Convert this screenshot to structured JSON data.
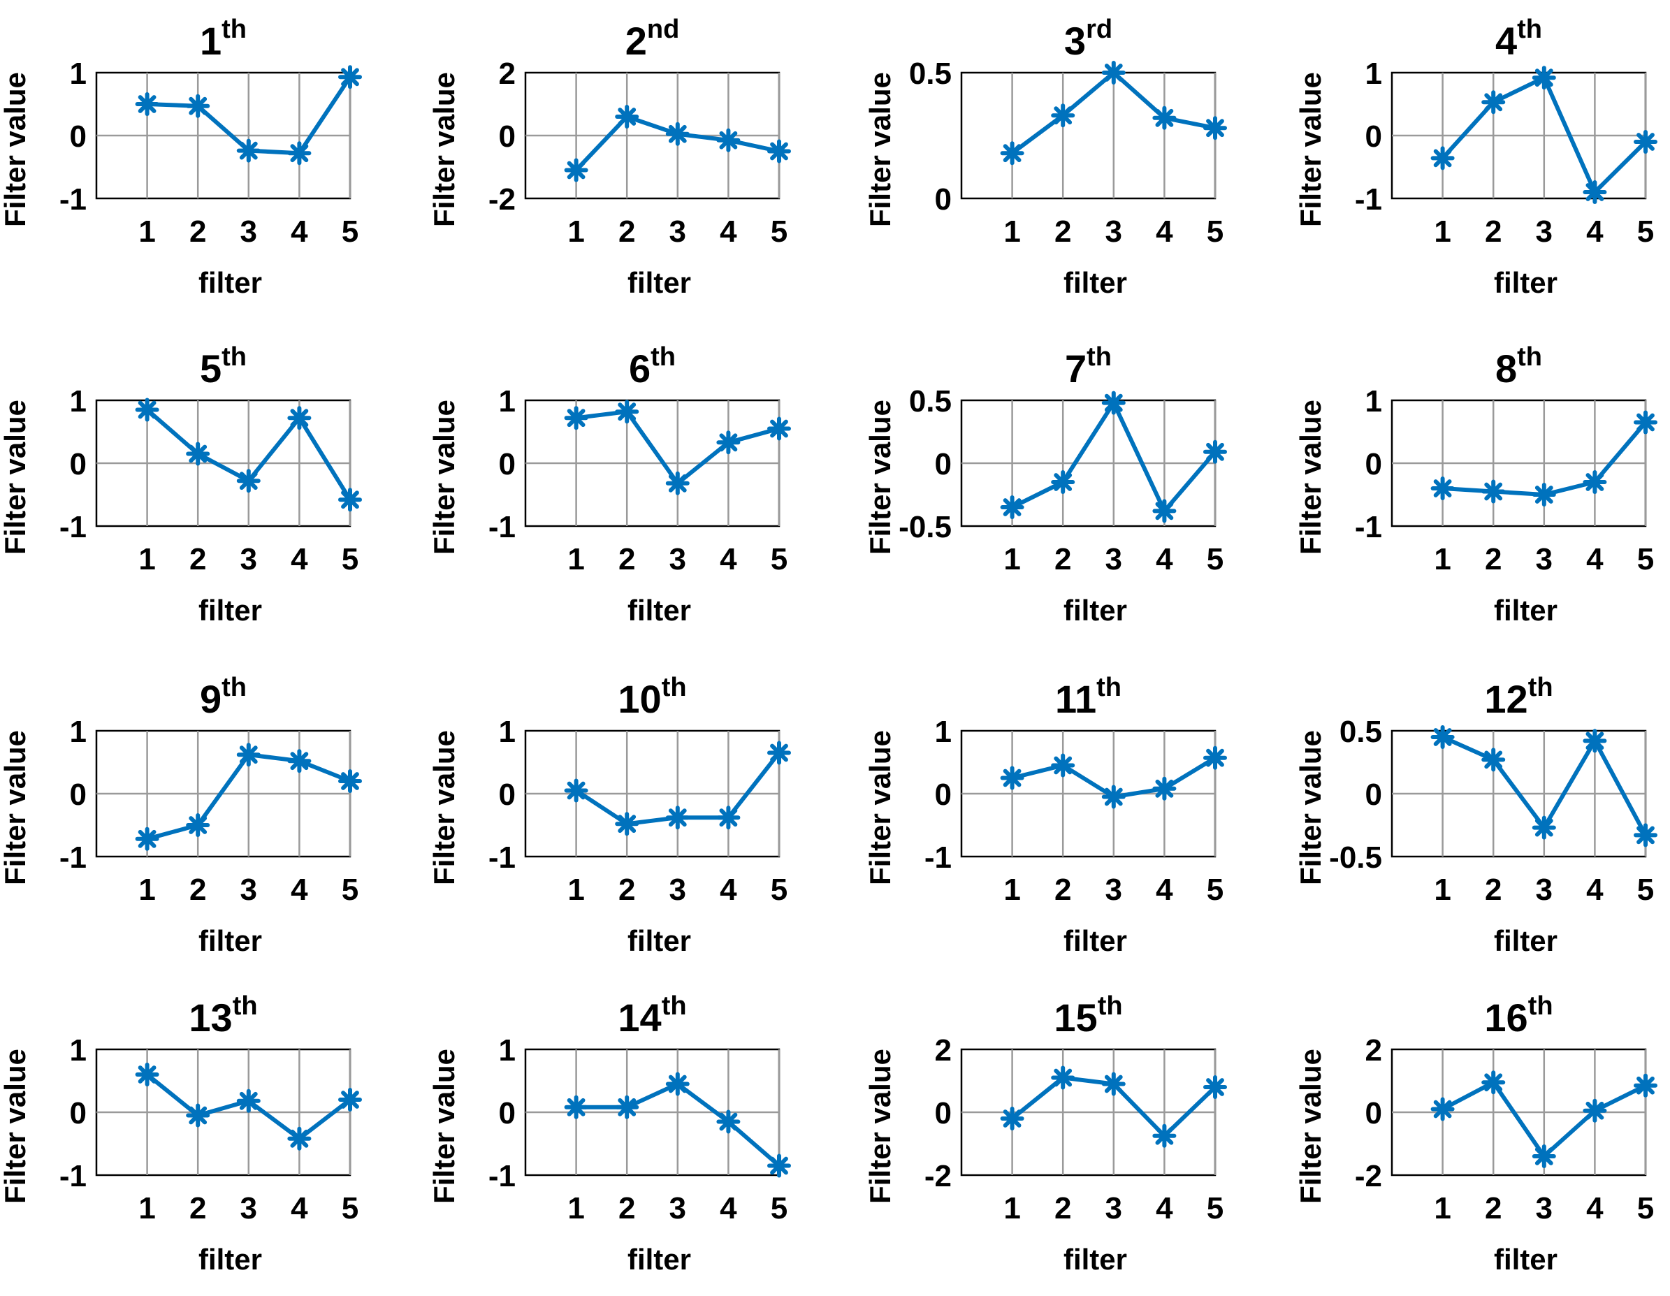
{
  "figure": {
    "xlabel": "filter",
    "ylabel": "Filter value",
    "line_color": "#0072bd"
  },
  "chart_data": [
    {
      "type": "line",
      "title": "1",
      "title_sup": "th",
      "xlabel": "filter",
      "ylabel": "Filter value",
      "x": [
        1,
        2,
        3,
        4,
        5
      ],
      "y": [
        0.5,
        0.47,
        -0.24,
        -0.28,
        0.93
      ],
      "xlim": [
        0,
        5
      ],
      "ylim": [
        -1,
        1
      ],
      "xticks": [
        1,
        2,
        3,
        4,
        5
      ],
      "yticks": [
        -1,
        0,
        1
      ],
      "ytick_labels": [
        "-1",
        "0",
        "1"
      ],
      "grid": true
    },
    {
      "type": "line",
      "title": "2",
      "title_sup": "nd",
      "xlabel": "filter",
      "ylabel": "Filter value",
      "x": [
        1,
        2,
        3,
        4,
        5
      ],
      "y": [
        -1.1,
        0.6,
        0.05,
        -0.15,
        -0.5
      ],
      "xlim": [
        0,
        5
      ],
      "ylim": [
        -2,
        2
      ],
      "xticks": [
        1,
        2,
        3,
        4,
        5
      ],
      "yticks": [
        -2,
        0,
        2
      ],
      "ytick_labels": [
        "-2",
        "0",
        "2"
      ],
      "grid": true
    },
    {
      "type": "line",
      "title": "3",
      "title_sup": "rd",
      "xlabel": "filter",
      "ylabel": "Filter value",
      "x": [
        1,
        2,
        3,
        4,
        5
      ],
      "y": [
        0.18,
        0.33,
        0.5,
        0.32,
        0.28
      ],
      "xlim": [
        0,
        5
      ],
      "ylim": [
        0,
        0.5
      ],
      "xticks": [
        1,
        2,
        3,
        4,
        5
      ],
      "yticks": [
        0,
        0.5
      ],
      "ytick_labels": [
        "0",
        "0.5"
      ],
      "grid": true
    },
    {
      "type": "line",
      "title": "4",
      "title_sup": "th",
      "xlabel": "filter",
      "ylabel": "Filter value",
      "x": [
        1,
        2,
        3,
        4,
        5
      ],
      "y": [
        -0.36,
        0.53,
        0.92,
        -0.9,
        -0.1
      ],
      "xlim": [
        0,
        5
      ],
      "ylim": [
        -1,
        1
      ],
      "xticks": [
        1,
        2,
        3,
        4,
        5
      ],
      "yticks": [
        -1,
        0,
        1
      ],
      "ytick_labels": [
        "-1",
        "0",
        "1"
      ],
      "grid": true
    },
    {
      "type": "line",
      "title": "5",
      "title_sup": "th",
      "xlabel": "filter",
      "ylabel": "Filter value",
      "x": [
        1,
        2,
        3,
        4,
        5
      ],
      "y": [
        0.85,
        0.15,
        -0.28,
        0.72,
        -0.58
      ],
      "xlim": [
        0,
        5
      ],
      "ylim": [
        -1,
        1
      ],
      "xticks": [
        1,
        2,
        3,
        4,
        5
      ],
      "yticks": [
        -1,
        0,
        1
      ],
      "ytick_labels": [
        "-1",
        "0",
        "1"
      ],
      "grid": true
    },
    {
      "type": "line",
      "title": "6",
      "title_sup": "th",
      "xlabel": "filter",
      "ylabel": "Filter value",
      "x": [
        1,
        2,
        3,
        4,
        5
      ],
      "y": [
        0.72,
        0.82,
        -0.32,
        0.33,
        0.55
      ],
      "xlim": [
        0,
        5
      ],
      "ylim": [
        -1,
        1
      ],
      "xticks": [
        1,
        2,
        3,
        4,
        5
      ],
      "yticks": [
        -1,
        0,
        1
      ],
      "ytick_labels": [
        "-1",
        "0",
        "1"
      ],
      "grid": true
    },
    {
      "type": "line",
      "title": "7",
      "title_sup": "th",
      "xlabel": "filter",
      "ylabel": "Filter value",
      "x": [
        1,
        2,
        3,
        4,
        5
      ],
      "y": [
        -0.35,
        -0.15,
        0.48,
        -0.38,
        0.09
      ],
      "xlim": [
        0,
        5
      ],
      "ylim": [
        -0.5,
        0.5
      ],
      "xticks": [
        1,
        2,
        3,
        4,
        5
      ],
      "yticks": [
        -0.5,
        0,
        0.5
      ],
      "ytick_labels": [
        "-0.5",
        "0",
        "0.5"
      ],
      "grid": true
    },
    {
      "type": "line",
      "title": "8",
      "title_sup": "th",
      "xlabel": "filter",
      "ylabel": "Filter value",
      "x": [
        1,
        2,
        3,
        4,
        5
      ],
      "y": [
        -0.4,
        -0.45,
        -0.5,
        -0.3,
        0.65
      ],
      "xlim": [
        0,
        5
      ],
      "ylim": [
        -1,
        1
      ],
      "xticks": [
        1,
        2,
        3,
        4,
        5
      ],
      "yticks": [
        -1,
        0,
        1
      ],
      "ytick_labels": [
        "-1",
        "0",
        "1"
      ],
      "grid": true
    },
    {
      "type": "line",
      "title": "9",
      "title_sup": "th",
      "xlabel": "filter",
      "ylabel": "Filter value",
      "x": [
        1,
        2,
        3,
        4,
        5
      ],
      "y": [
        -0.72,
        -0.5,
        0.62,
        0.52,
        0.2
      ],
      "xlim": [
        0,
        5
      ],
      "ylim": [
        -1,
        1
      ],
      "xticks": [
        1,
        2,
        3,
        4,
        5
      ],
      "yticks": [
        -1,
        0,
        1
      ],
      "ytick_labels": [
        "-1",
        "0",
        "1"
      ],
      "grid": true
    },
    {
      "type": "line",
      "title": "10",
      "title_sup": "th",
      "xlabel": "filter",
      "ylabel": "Filter value",
      "x": [
        1,
        2,
        3,
        4,
        5
      ],
      "y": [
        0.05,
        -0.48,
        -0.38,
        -0.38,
        0.65
      ],
      "xlim": [
        0,
        5
      ],
      "ylim": [
        -1,
        1
      ],
      "xticks": [
        1,
        2,
        3,
        4,
        5
      ],
      "yticks": [
        -1,
        0,
        1
      ],
      "ytick_labels": [
        "-1",
        "0",
        "1"
      ],
      "grid": true
    },
    {
      "type": "line",
      "title": "11",
      "title_sup": "th",
      "xlabel": "filter",
      "ylabel": "Filter value",
      "x": [
        1,
        2,
        3,
        4,
        5
      ],
      "y": [
        0.25,
        0.45,
        -0.05,
        0.08,
        0.57
      ],
      "xlim": [
        0,
        5
      ],
      "ylim": [
        -1,
        1
      ],
      "xticks": [
        1,
        2,
        3,
        4,
        5
      ],
      "yticks": [
        -1,
        0,
        1
      ],
      "ytick_labels": [
        "-1",
        "0",
        "1"
      ],
      "grid": true
    },
    {
      "type": "line",
      "title": "12",
      "title_sup": "th",
      "xlabel": "filter",
      "ylabel": "Filter value",
      "x": [
        1,
        2,
        3,
        4,
        5
      ],
      "y": [
        0.45,
        0.27,
        -0.27,
        0.42,
        -0.33
      ],
      "xlim": [
        0,
        5
      ],
      "ylim": [
        -0.5,
        0.5
      ],
      "xticks": [
        1,
        2,
        3,
        4,
        5
      ],
      "yticks": [
        -0.5,
        0,
        0.5
      ],
      "ytick_labels": [
        "-0.5",
        "0",
        "0.5"
      ],
      "grid": true
    },
    {
      "type": "line",
      "title": "13",
      "title_sup": "th",
      "xlabel": "filter",
      "ylabel": "Filter value",
      "x": [
        1,
        2,
        3,
        4,
        5
      ],
      "y": [
        0.6,
        -0.05,
        0.18,
        -0.42,
        0.2
      ],
      "xlim": [
        0,
        5
      ],
      "ylim": [
        -1,
        1
      ],
      "xticks": [
        1,
        2,
        3,
        4,
        5
      ],
      "yticks": [
        -1,
        0,
        1
      ],
      "ytick_labels": [
        "-1",
        "0",
        "1"
      ],
      "grid": true
    },
    {
      "type": "line",
      "title": "14",
      "title_sup": "th",
      "xlabel": "filter",
      "ylabel": "Filter value",
      "x": [
        1,
        2,
        3,
        4,
        5
      ],
      "y": [
        0.08,
        0.08,
        0.45,
        -0.15,
        -0.85
      ],
      "xlim": [
        0,
        5
      ],
      "ylim": [
        -1,
        1
      ],
      "xticks": [
        1,
        2,
        3,
        4,
        5
      ],
      "yticks": [
        -1,
        0,
        1
      ],
      "ytick_labels": [
        "-1",
        "0",
        "1"
      ],
      "grid": true
    },
    {
      "type": "line",
      "title": "15",
      "title_sup": "th",
      "xlabel": "filter",
      "ylabel": "Filter value",
      "x": [
        1,
        2,
        3,
        4,
        5
      ],
      "y": [
        -0.2,
        1.1,
        0.9,
        -0.75,
        0.8
      ],
      "xlim": [
        0,
        5
      ],
      "ylim": [
        -2,
        2
      ],
      "xticks": [
        1,
        2,
        3,
        4,
        5
      ],
      "yticks": [
        -2,
        0,
        2
      ],
      "ytick_labels": [
        "-2",
        "0",
        "2"
      ],
      "grid": true
    },
    {
      "type": "line",
      "title": "16",
      "title_sup": "th",
      "xlabel": "filter",
      "ylabel": "Filter value",
      "x": [
        1,
        2,
        3,
        4,
        5
      ],
      "y": [
        0.1,
        0.95,
        -1.4,
        0.05,
        0.85
      ],
      "xlim": [
        0,
        5
      ],
      "ylim": [
        -2,
        2
      ],
      "xticks": [
        1,
        2,
        3,
        4,
        5
      ],
      "yticks": [
        -2,
        0,
        2
      ],
      "ytick_labels": [
        "-2",
        "0",
        "2"
      ],
      "grid": true
    }
  ]
}
